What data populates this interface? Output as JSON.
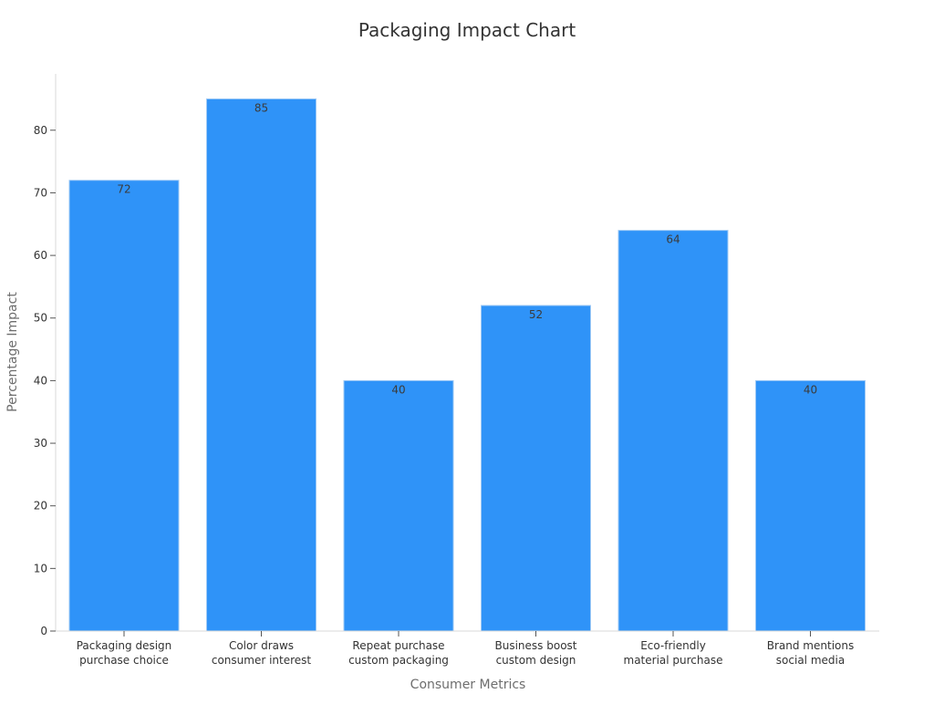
{
  "chart_data": {
    "type": "bar",
    "title": "Packaging Impact Chart",
    "xlabel": "Consumer Metrics",
    "ylabel": "Percentage Impact",
    "categories": [
      [
        "Packaging design",
        "purchase choice"
      ],
      [
        "Color draws",
        "consumer interest"
      ],
      [
        "Repeat purchase",
        "custom packaging"
      ],
      [
        "Business boost",
        "custom design"
      ],
      [
        "Eco-friendly",
        "material purchase"
      ],
      [
        "Brand mentions",
        "social media"
      ]
    ],
    "values": [
      72,
      85,
      40,
      52,
      64,
      40
    ],
    "data_labels": [
      "72",
      "85",
      "40",
      "52",
      "64",
      "40"
    ],
    "ylim": [
      0,
      89
    ],
    "yticks": [
      0,
      10,
      20,
      30,
      40,
      50,
      60,
      70,
      80
    ],
    "grid": false,
    "bar_color": "#2F93F8"
  }
}
